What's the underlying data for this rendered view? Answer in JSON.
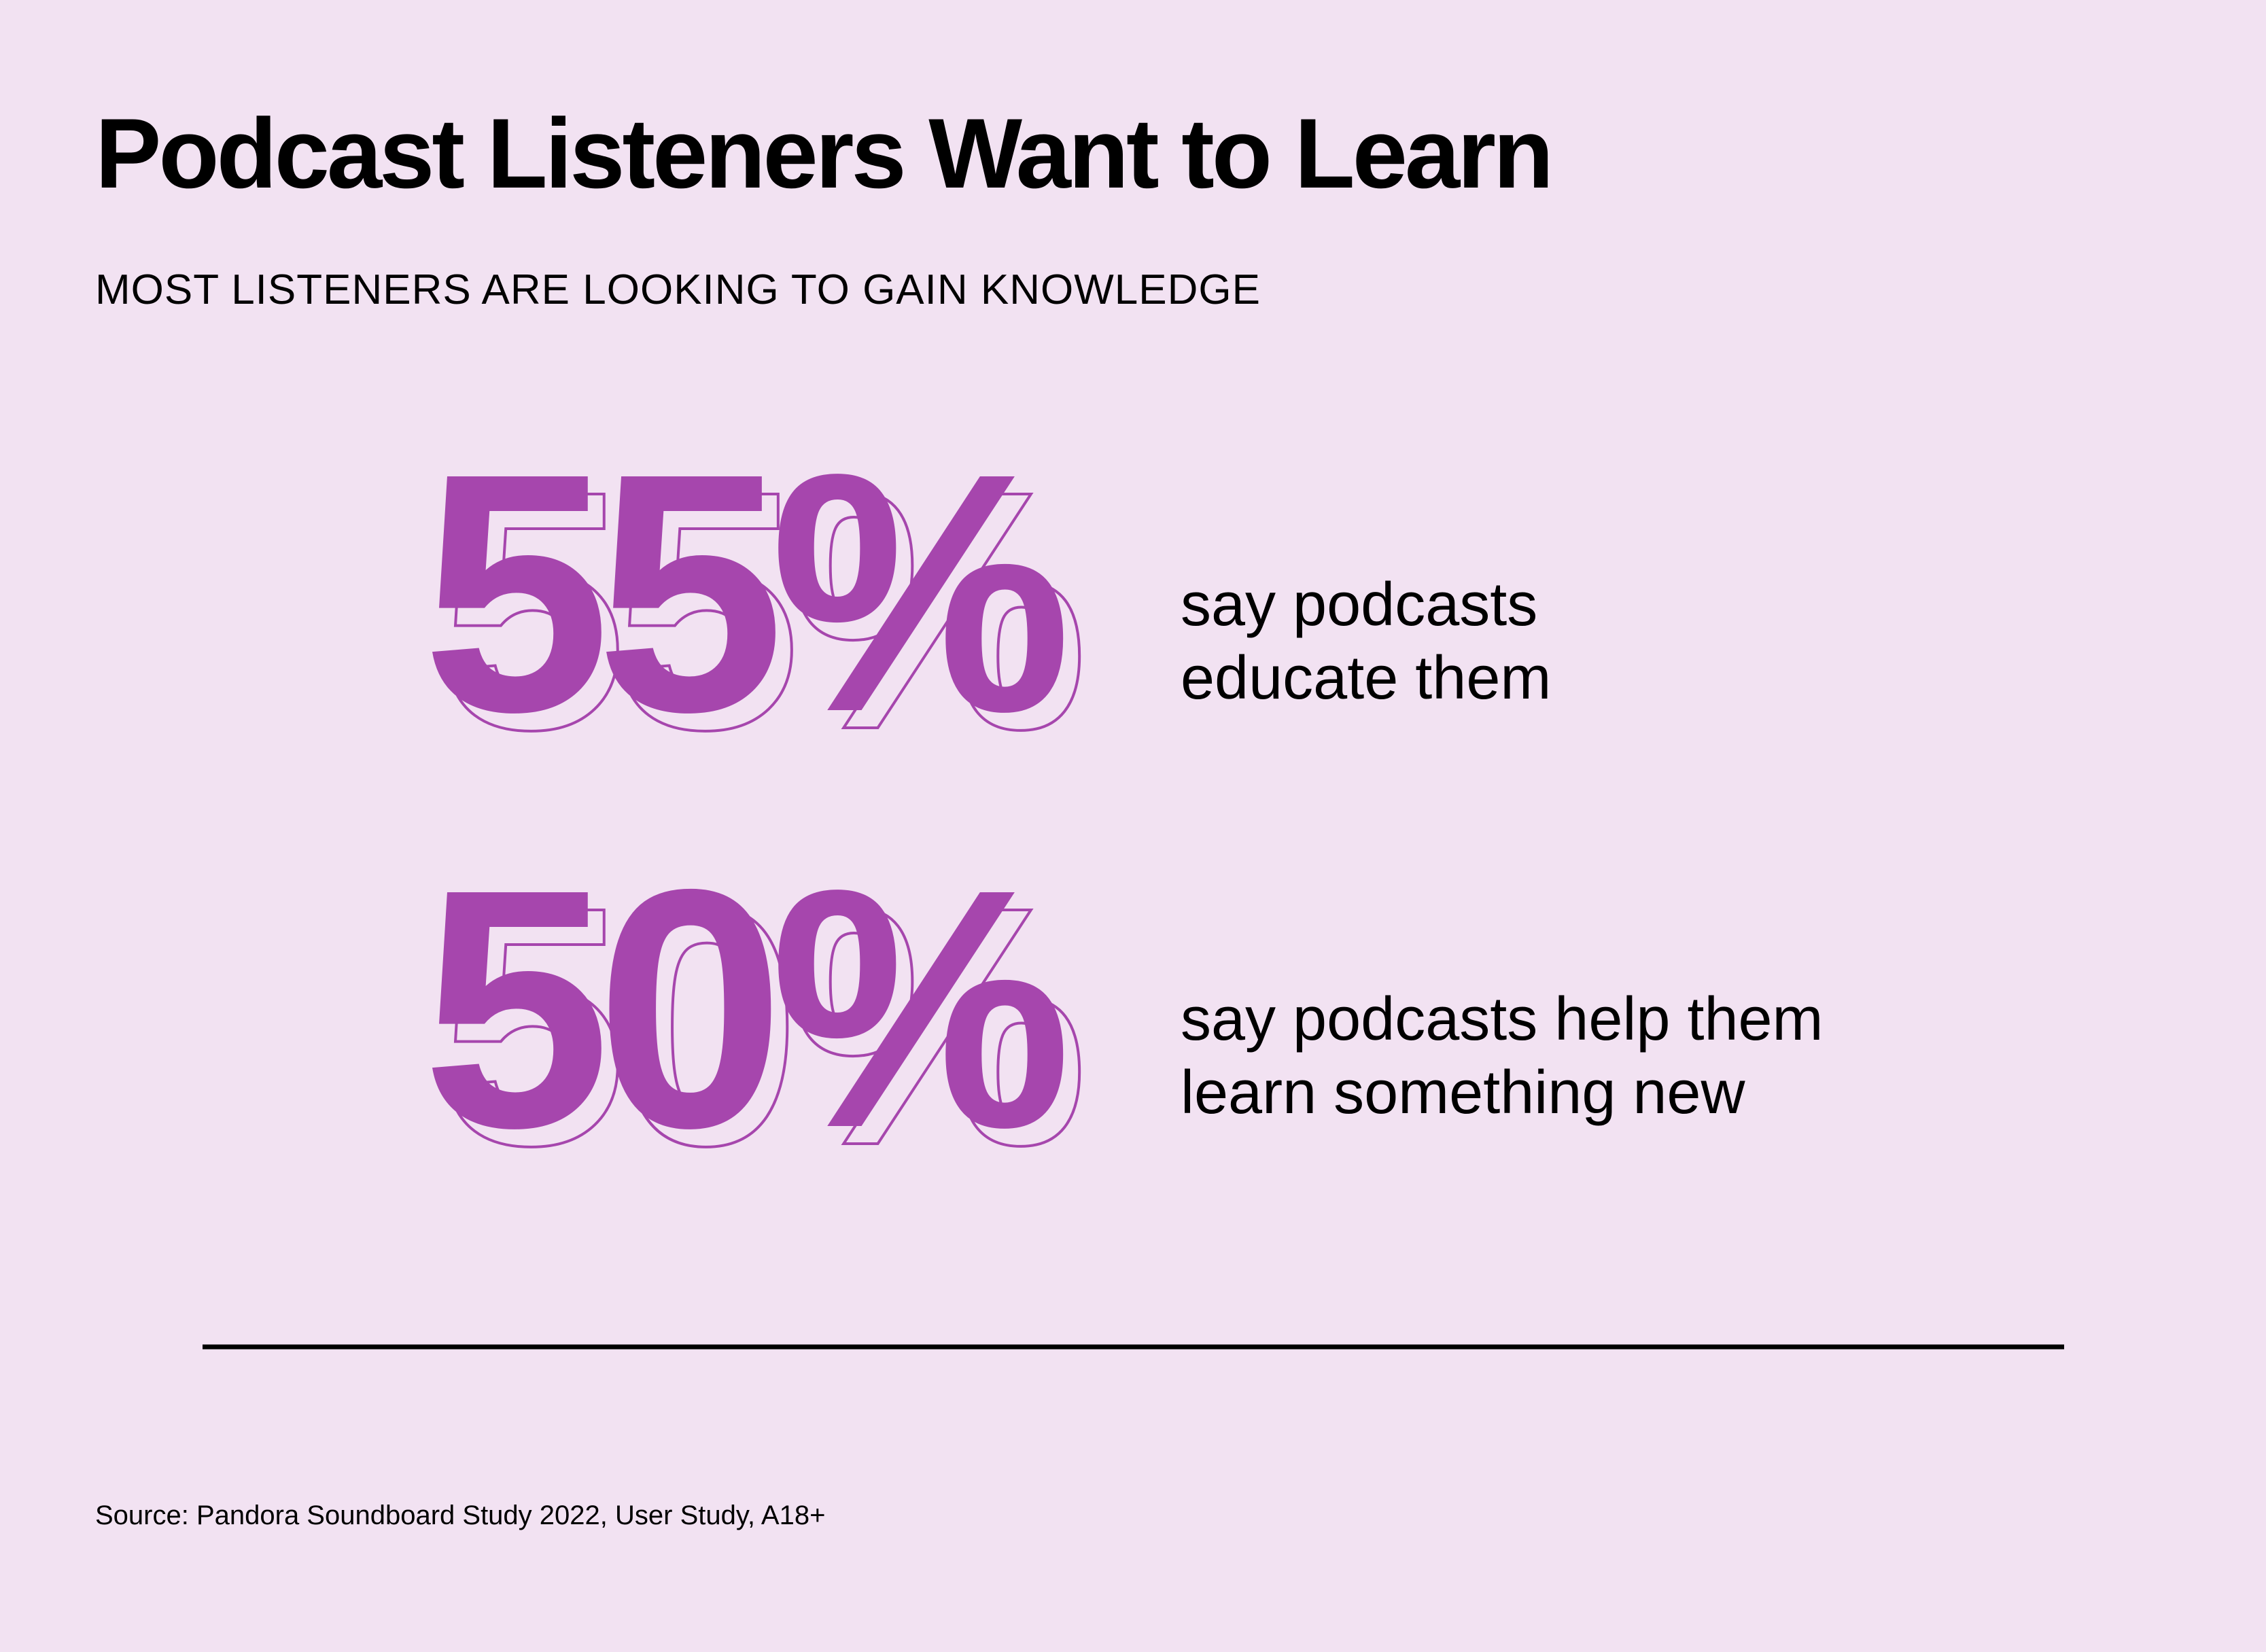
{
  "header": {
    "title": "Podcast Listeners Want to Learn",
    "subtitle": "MOST LISTENERS ARE LOOKING TO GAIN KNOWLEDGE"
  },
  "stats": [
    {
      "figure": "55%",
      "text": [
        "say podcasts",
        "educate them"
      ]
    },
    {
      "figure": "50%",
      "text": [
        "say podcasts help them",
        "learn something new"
      ]
    }
  ],
  "footer": {
    "source": "Source: Pandora Soundboard Study 2022, User Study, A18+"
  }
}
